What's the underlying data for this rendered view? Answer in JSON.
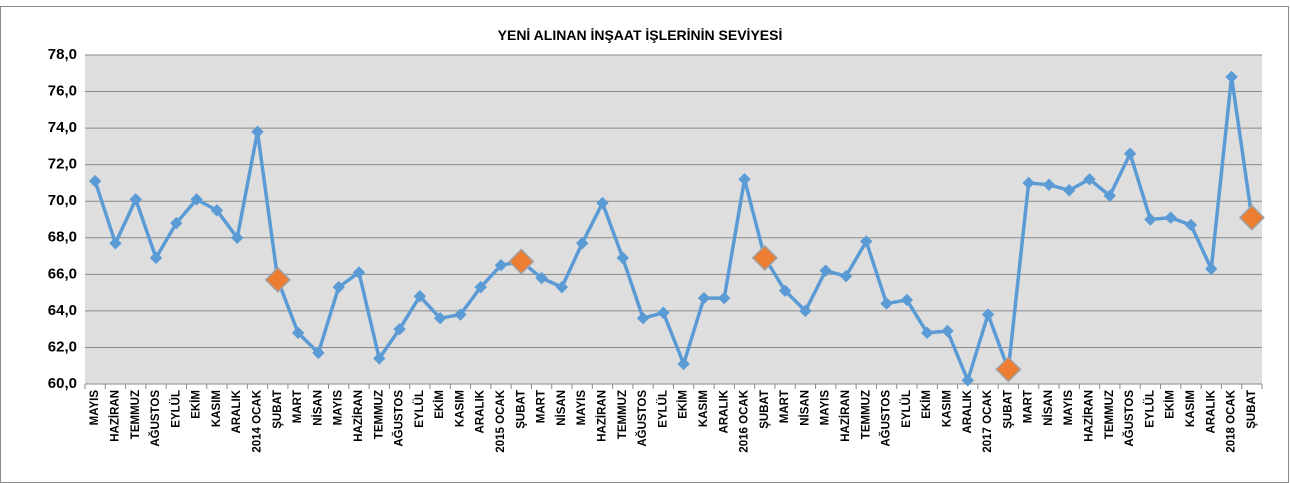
{
  "chart_data": {
    "type": "line",
    "title": "YENİ ALINAN İNŞAAT İŞLERİNİN SEVİYESİ",
    "categories": [
      "MAYIS",
      "HAZİRAN",
      "TEMMUZ",
      "AĞUSTOS",
      "EYLÜL",
      "EKİM",
      "KASIM",
      "ARALIK",
      "2014 OCAK",
      "ŞUBAT",
      "MART",
      "NİSAN",
      "MAYIS",
      "HAZİRAN",
      "TEMMUZ",
      "AĞUSTOS",
      "EYLÜL",
      "EKİM",
      "KASIM",
      "ARALIK",
      "2015 OCAK",
      "ŞUBAT",
      "MART",
      "NİSAN",
      "MAYIS",
      "HAZİRAN",
      "TEMMUZ",
      "AĞUSTOS",
      "EYLÜL",
      "EKİM",
      "KASIM",
      "ARALIK",
      "2016 OCAK",
      "ŞUBAT",
      "MART",
      "NİSAN",
      "MAYIS",
      "HAZİRAN",
      "TEMMUZ",
      "AĞUSTOS",
      "EYLÜL",
      "EKİM",
      "KASIM",
      "ARALIK",
      "2017 OCAK",
      "ŞUBAT",
      "MART",
      "NİSAN",
      "MAYIS",
      "HAZİRAN",
      "TEMMUZ",
      "AĞUSTOS",
      "EYLÜL",
      "EKİM",
      "KASIM",
      "ARALIK",
      "2018 OCAK",
      "ŞUBAT"
    ],
    "values": [
      71.1,
      67.7,
      70.1,
      66.9,
      68.8,
      70.1,
      69.5,
      68.0,
      73.8,
      65.7,
      62.8,
      61.7,
      65.3,
      66.1,
      61.4,
      63.0,
      64.8,
      63.6,
      63.8,
      65.3,
      66.5,
      66.7,
      65.8,
      65.3,
      67.7,
      69.9,
      66.9,
      63.6,
      63.9,
      61.1,
      64.7,
      64.7,
      71.2,
      66.9,
      65.1,
      64.0,
      66.2,
      65.9,
      67.8,
      64.4,
      64.6,
      62.8,
      62.9,
      60.2,
      63.8,
      60.8,
      71.0,
      70.9,
      70.6,
      71.2,
      70.3,
      72.6,
      69.0,
      69.1,
      68.7,
      66.3,
      76.8,
      69.1
    ],
    "color": "#5b9bd5",
    "highlight": {
      "color": "#ed7d31",
      "indices": [
        9,
        21,
        33,
        45,
        57
      ]
    },
    "ylim": [
      60,
      78
    ],
    "yticks": [
      {
        "value": 60,
        "label": "60,0"
      },
      {
        "value": 62,
        "label": "62,0"
      },
      {
        "value": 64,
        "label": "64,0"
      },
      {
        "value": 66,
        "label": "66,0"
      },
      {
        "value": 68,
        "label": "68,0"
      },
      {
        "value": 70,
        "label": "70,0"
      },
      {
        "value": 72,
        "label": "72,0"
      },
      {
        "value": 74,
        "label": "74,0"
      },
      {
        "value": 76,
        "label": "76,0"
      },
      {
        "value": 78,
        "label": "78,0"
      }
    ],
    "grid": true
  }
}
